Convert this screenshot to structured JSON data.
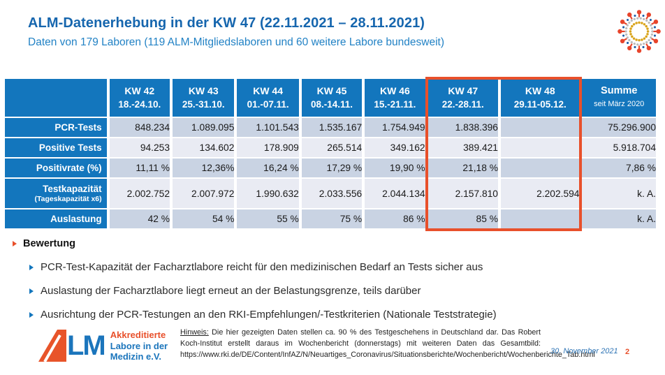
{
  "header": {
    "title": "ALM-Datenerhebung in der KW 47 (22.11.2021 – 28.11.2021)",
    "subtitle": "Daten von 179 Laboren (119 ALM-Mitgliedslaboren und 60 weitere Labore bundesweit)"
  },
  "table": {
    "columns": [
      {
        "week": "KW 42",
        "range": "18.-24.10."
      },
      {
        "week": "KW 43",
        "range": "25.-31.10."
      },
      {
        "week": "KW 44",
        "range": "01.-07.11."
      },
      {
        "week": "KW 45",
        "range": "08.-14.11."
      },
      {
        "week": "KW 46",
        "range": "15.-21.11."
      },
      {
        "week": "KW 47",
        "range": "22.-28.11."
      },
      {
        "week": "KW 48",
        "range": "29.11-05.12."
      },
      {
        "week": "Summe",
        "range": "seit März 2020"
      }
    ],
    "rows": [
      {
        "label": "PCR-Tests",
        "sublabel": "",
        "values": [
          "848.234",
          "1.089.095",
          "1.101.543",
          "1.535.167",
          "1.754.949",
          "1.838.396",
          "",
          "75.296.900"
        ]
      },
      {
        "label": "Positive Tests",
        "sublabel": "",
        "values": [
          "94.253",
          "134.602",
          "178.909",
          "265.514",
          "349.162",
          "389.421",
          "",
          "5.918.704"
        ]
      },
      {
        "label": "Positivrate (%)",
        "sublabel": "",
        "values": [
          "11,11 %",
          "12,36%",
          "16,24 %",
          "17,29 %",
          "19,90 %",
          "21,18 %",
          "",
          "7,86 %"
        ]
      },
      {
        "label": "Testkapazität",
        "sublabel": "(Tageskapazität x6)",
        "values": [
          "2.002.752",
          "2.007.972",
          "1.990.632",
          "2.033.556",
          "2.044.134",
          "2.157.810",
          "2.202.594",
          "k. A."
        ]
      },
      {
        "label": "Auslastung",
        "sublabel": "",
        "values": [
          "42 %",
          "54 %",
          "55 %",
          "75 %",
          "86 %",
          "85 %",
          "",
          "k. A."
        ]
      }
    ],
    "highlight_columns": [
      "KW 47",
      "KW 48"
    ]
  },
  "bewertung": {
    "heading": "Bewertung",
    "bullets": [
      "PCR-Test-Kapazität der Facharztlabore reicht für den medizinischen Bedarf an Tests sicher aus",
      "Auslastung der Facharztlabore liegt erneut an der Belastungsgrenze, teils darüber",
      "Ausrichtung der PCR-Testungen an den RKI-Empfehlungen/-Testkriterien (Nationale Teststrategie)"
    ]
  },
  "footer": {
    "logo": {
      "mark": "ALM",
      "lm": "LM",
      "line1": "Akkreditierte",
      "line2": "Labore in der",
      "line3": "Medizin e.V."
    },
    "hinweis_label": "Hinweis:",
    "hinweis_text": " Die hier gezeigten Daten stellen ca. 90 % des Testgeschehens in Deutschland dar. Das Robert Koch-Institut erstellt daraus im Wochenbericht (donnerstags) mit weiteren Daten das Gesamtbild: https://www.rki.de/DE/Content/InfAZ/N/Neuartiges_Coronavirus/Situationsberichte/Wochenbericht/Wochenberichte_Tab.html",
    "date": "30. November 2021",
    "page": "2"
  },
  "colors": {
    "blue": "#1376BD",
    "orange": "#E8502B",
    "band-a": "#C9D3E3",
    "band-b": "#E9EBF3",
    "title-blue": "#1666AE",
    "subtitle-blue": "#2282C5"
  }
}
